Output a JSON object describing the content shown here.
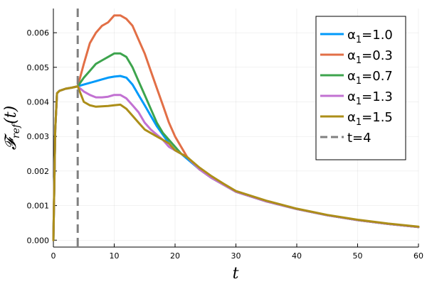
{
  "chart_data": {
    "type": "line",
    "xlabel": "t",
    "ylabel": "𝓕",
    "ylabel_sub": "ref",
    "ylabel_arg": "(t)",
    "xlim": [
      0,
      60
    ],
    "ylim": [
      -0.0002,
      0.0067
    ],
    "xticks": [
      0,
      10,
      20,
      30,
      40,
      50,
      60
    ],
    "xtick_labels": [
      "0",
      "10",
      "20",
      "30",
      "40",
      "50",
      "60"
    ],
    "yticks": [
      0,
      0.001,
      0.002,
      0.003,
      0.004,
      0.005,
      0.006
    ],
    "ytick_labels": [
      "0.000",
      "0.001",
      "0.002",
      "0.003",
      "0.004",
      "0.005",
      "0.006"
    ],
    "grid": true,
    "legend_position": "top-right",
    "series": [
      {
        "name": "α₁=1.0",
        "label_main": "α",
        "label_sub": "1",
        "label_rest": "=1.0",
        "color": "#009AFA",
        "x": [
          0,
          0.3,
          0.6,
          1,
          2,
          3,
          4,
          5,
          6,
          7,
          8,
          9,
          10,
          11,
          12,
          13,
          14,
          15,
          16,
          17,
          18,
          19,
          20,
          21,
          22,
          24,
          26,
          28,
          30,
          35,
          40,
          45,
          50,
          55,
          60
        ],
        "y": [
          0,
          0.0032,
          0.00425,
          0.00432,
          0.00438,
          0.00441,
          0.00445,
          0.0045,
          0.00455,
          0.0046,
          0.00465,
          0.0047,
          0.00473,
          0.00475,
          0.0047,
          0.0045,
          0.0042,
          0.0039,
          0.0036,
          0.0033,
          0.00305,
          0.0028,
          0.0026,
          0.0025,
          0.00235,
          0.00205,
          0.0018,
          0.0016,
          0.0014,
          0.00112,
          0.0009,
          0.00072,
          0.00058,
          0.00047,
          0.00038
        ]
      },
      {
        "name": "α₁=0.3",
        "label_main": "α",
        "label_sub": "1",
        "label_rest": "=0.3",
        "color": "#E26F46",
        "x": [
          0,
          0.3,
          0.6,
          1,
          2,
          3,
          4,
          5,
          6,
          7,
          8,
          9,
          10,
          11,
          12,
          13,
          14,
          15,
          16,
          17,
          18,
          19,
          20,
          21,
          22,
          24,
          26,
          28,
          30,
          35,
          40,
          45,
          50,
          55,
          60
        ],
        "y": [
          0,
          0.0032,
          0.00425,
          0.00432,
          0.00438,
          0.00441,
          0.00445,
          0.0051,
          0.0057,
          0.006,
          0.0062,
          0.0063,
          0.0065,
          0.0065,
          0.0064,
          0.0062,
          0.0058,
          0.0054,
          0.0049,
          0.0044,
          0.0039,
          0.0034,
          0.003,
          0.0027,
          0.0024,
          0.00205,
          0.0018,
          0.0016,
          0.0014,
          0.00112,
          0.0009,
          0.00072,
          0.00058,
          0.00047,
          0.00038
        ]
      },
      {
        "name": "α₁=0.7",
        "label_main": "α",
        "label_sub": "1",
        "label_rest": "=0.7",
        "color": "#3DA44D",
        "x": [
          0,
          0.3,
          0.6,
          1,
          2,
          3,
          4,
          5,
          6,
          7,
          8,
          9,
          10,
          11,
          12,
          13,
          14,
          15,
          16,
          17,
          18,
          19,
          20,
          21,
          22,
          24,
          26,
          28,
          30,
          35,
          40,
          45,
          50,
          55,
          60
        ],
        "y": [
          0,
          0.0032,
          0.00425,
          0.00432,
          0.00438,
          0.00441,
          0.00445,
          0.0047,
          0.0049,
          0.0051,
          0.0052,
          0.0053,
          0.0054,
          0.0054,
          0.0053,
          0.005,
          0.0046,
          0.0042,
          0.0038,
          0.0034,
          0.0031,
          0.0029,
          0.0027,
          0.0025,
          0.0024,
          0.00205,
          0.0018,
          0.0016,
          0.0014,
          0.00112,
          0.0009,
          0.00072,
          0.00058,
          0.00047,
          0.00038
        ]
      },
      {
        "name": "α₁=1.3",
        "label_main": "α",
        "label_sub": "1",
        "label_rest": "=1.3",
        "color": "#C271D2",
        "x": [
          0,
          0.3,
          0.6,
          1,
          2,
          3,
          4,
          5,
          6,
          7,
          8,
          9,
          10,
          11,
          12,
          13,
          14,
          15,
          16,
          17,
          18,
          19,
          20,
          21,
          22,
          24,
          26,
          28,
          30,
          35,
          40,
          45,
          50,
          55,
          60
        ],
        "y": [
          0,
          0.0032,
          0.00425,
          0.00432,
          0.00438,
          0.00441,
          0.00445,
          0.0043,
          0.0042,
          0.00413,
          0.00413,
          0.00415,
          0.0042,
          0.0042,
          0.0041,
          0.0039,
          0.0037,
          0.0034,
          0.0032,
          0.00305,
          0.0029,
          0.0027,
          0.0026,
          0.0025,
          0.0024,
          0.00205,
          0.0018,
          0.0016,
          0.0014,
          0.00112,
          0.0009,
          0.00072,
          0.00058,
          0.00047,
          0.00038
        ]
      },
      {
        "name": "α₁=1.5",
        "label_main": "α",
        "label_sub": "1",
        "label_rest": "=1.5",
        "color": "#AC8E18",
        "x": [
          0,
          0.3,
          0.6,
          1,
          2,
          3,
          4,
          5,
          6,
          7,
          8,
          9,
          10,
          11,
          12,
          13,
          14,
          15,
          16,
          17,
          18,
          19,
          20,
          21,
          22,
          24,
          26,
          28,
          30,
          35,
          40,
          45,
          50,
          55,
          60
        ],
        "y": [
          0,
          0.0032,
          0.00425,
          0.00432,
          0.00438,
          0.00441,
          0.00445,
          0.004,
          0.0039,
          0.00386,
          0.00387,
          0.00388,
          0.0039,
          0.00392,
          0.0038,
          0.0036,
          0.0034,
          0.0032,
          0.0031,
          0.003,
          0.0029,
          0.0028,
          0.0026,
          0.0025,
          0.0024,
          0.0021,
          0.00185,
          0.00163,
          0.00142,
          0.00114,
          0.00091,
          0.00073,
          0.00059,
          0.00048,
          0.00039
        ]
      }
    ],
    "vline": {
      "x": 4,
      "label": "t=4",
      "color": "#808080"
    }
  }
}
